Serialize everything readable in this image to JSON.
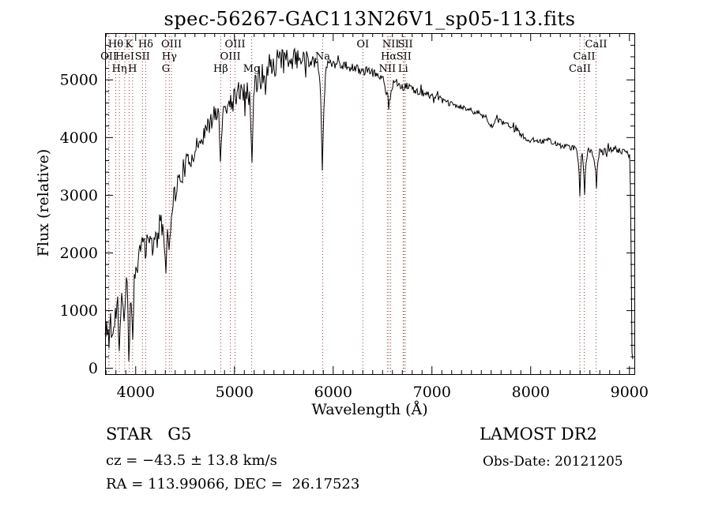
{
  "header": {
    "title": "spec-56267-GAC113N26V1_sp05-113.fits"
  },
  "footer": {
    "object_class": "STAR   G5",
    "survey": "LAMOST DR2",
    "cz": "cz = −43.5 ± 13.8 km/s",
    "obs_date": "Obs-Date: 20121205",
    "radec": "RA = 113.99066, DEC =  26.17523"
  },
  "chart_data": {
    "type": "line",
    "title": "spec-56267-GAC113N26V1_sp05-113.fits",
    "xlabel": "Wavelength (Å)",
    "ylabel": "Flux (relative)",
    "xlim": [
      3690,
      9050
    ],
    "ylim": [
      -100,
      5810
    ],
    "xticks": [
      4000,
      5000,
      6000,
      7000,
      8000,
      9000
    ],
    "yticks": [
      0,
      1000,
      2000,
      3000,
      4000,
      5000
    ],
    "x_minor_step": 100,
    "y_minor_step": 200,
    "grid": false,
    "legend": "none",
    "line_color": "#000000",
    "marker_line_color": "#a03a30",
    "seed": 11,
    "sample_step": 8,
    "spectral_lines": [
      {
        "label": "OII",
        "wavelength": 3727,
        "row": 2
      },
      {
        "label": "OII",
        "wavelength": 3729,
        "row": 3
      },
      {
        "label": "Hθ",
        "wavelength": 3798,
        "row": 1
      },
      {
        "label": "Hη",
        "wavelength": 3835,
        "row": 3
      },
      {
        "label": "HeI",
        "wavelength": 3889,
        "row": 2
      },
      {
        "label": "K",
        "wavelength": 3933,
        "row": 1
      },
      {
        "label": "H",
        "wavelength": 3968,
        "row": 3
      },
      {
        "label": "SII",
        "wavelength": 4068,
        "row": 2
      },
      {
        "label": "Hδ",
        "wavelength": 4101,
        "row": 1
      },
      {
        "label": "G",
        "wavelength": 4305,
        "row": 3
      },
      {
        "label": "Hγ",
        "wavelength": 4340,
        "row": 2
      },
      {
        "label": "OIII",
        "wavelength": 4363,
        "row": 1
      },
      {
        "label": "Hβ",
        "wavelength": 4861,
        "row": 3
      },
      {
        "label": "OIII",
        "wavelength": 4959,
        "row": 2
      },
      {
        "label": "OIII",
        "wavelength": 5007,
        "row": 1
      },
      {
        "label": "Mg",
        "wavelength": 5175,
        "row": 3
      },
      {
        "label": "Na",
        "wavelength": 5893,
        "row": 2
      },
      {
        "label": "OI",
        "wavelength": 6300,
        "row": 1
      },
      {
        "label": "NII",
        "wavelength": 6548,
        "row": 3
      },
      {
        "label": "Hα",
        "wavelength": 6563,
        "row": 2
      },
      {
        "label": "NII",
        "wavelength": 6583,
        "row": 1
      },
      {
        "label": "Li",
        "wavelength": 6708,
        "row": 3
      },
      {
        "label": "SII",
        "wavelength": 6716,
        "row": 2
      },
      {
        "label": "SII",
        "wavelength": 6731,
        "row": 1
      },
      {
        "label": "CaII",
        "wavelength": 8498,
        "row": 3
      },
      {
        "label": "CaII",
        "wavelength": 8542,
        "row": 2
      },
      {
        "label": "CaII",
        "wavelength": 8662,
        "row": 1
      }
    ],
    "continuum": [
      [
        3690,
        600
      ],
      [
        3700,
        450
      ],
      [
        3715,
        850
      ],
      [
        3727,
        500
      ],
      [
        3740,
        950
      ],
      [
        3755,
        700
      ],
      [
        3770,
        550
      ],
      [
        3785,
        750
      ],
      [
        3800,
        950
      ],
      [
        3815,
        1050
      ],
      [
        3825,
        800
      ],
      [
        3835,
        450
      ],
      [
        3850,
        1150
      ],
      [
        3870,
        1100
      ],
      [
        3889,
        850
      ],
      [
        3905,
        1500
      ],
      [
        3920,
        1550
      ],
      [
        3933,
        250
      ],
      [
        3950,
        1500
      ],
      [
        3968,
        600
      ],
      [
        3985,
        1450
      ],
      [
        4000,
        1700
      ],
      [
        4025,
        1950
      ],
      [
        4050,
        2200
      ],
      [
        4068,
        2050
      ],
      [
        4085,
        2300
      ],
      [
        4101,
        2050
      ],
      [
        4120,
        2350
      ],
      [
        4150,
        2200
      ],
      [
        4180,
        2100
      ],
      [
        4210,
        2250
      ],
      [
        4240,
        2450
      ],
      [
        4270,
        2500
      ],
      [
        4290,
        2300
      ],
      [
        4305,
        1800
      ],
      [
        4320,
        2500
      ],
      [
        4340,
        2150
      ],
      [
        4360,
        2750
      ],
      [
        4380,
        2950
      ],
      [
        4410,
        3100
      ],
      [
        4440,
        3250
      ],
      [
        4470,
        3400
      ],
      [
        4500,
        3500
      ],
      [
        4530,
        3550
      ],
      [
        4560,
        3650
      ],
      [
        4600,
        3800
      ],
      [
        4640,
        3900
      ],
      [
        4680,
        4050
      ],
      [
        4720,
        4150
      ],
      [
        4760,
        4250
      ],
      [
        4800,
        4400
      ],
      [
        4830,
        4500
      ],
      [
        4861,
        3900
      ],
      [
        4890,
        4500
      ],
      [
        4920,
        4550
      ],
      [
        4959,
        4600
      ],
      [
        5000,
        4700
      ],
      [
        5040,
        4800
      ],
      [
        5080,
        4800
      ],
      [
        5120,
        4850
      ],
      [
        5155,
        4700
      ],
      [
        5175,
        3900
      ],
      [
        5200,
        4850
      ],
      [
        5240,
        5000
      ],
      [
        5280,
        5100
      ],
      [
        5320,
        5150
      ],
      [
        5360,
        5250
      ],
      [
        5400,
        5300
      ],
      [
        5450,
        5300
      ],
      [
        5500,
        5350
      ],
      [
        5550,
        5300
      ],
      [
        5600,
        5350
      ],
      [
        5650,
        5400
      ],
      [
        5700,
        5400
      ],
      [
        5750,
        5350
      ],
      [
        5800,
        5350
      ],
      [
        5850,
        5300
      ],
      [
        5893,
        4200
      ],
      [
        5930,
        5250
      ],
      [
        5970,
        5300
      ],
      [
        6010,
        5300
      ],
      [
        6060,
        5280
      ],
      [
        6110,
        5250
      ],
      [
        6160,
        5220
      ],
      [
        6210,
        5200
      ],
      [
        6260,
        5180
      ],
      [
        6310,
        5150
      ],
      [
        6360,
        5150
      ],
      [
        6410,
        5120
      ],
      [
        6460,
        5080
      ],
      [
        6510,
        5020
      ],
      [
        6563,
        4600
      ],
      [
        6610,
        4980
      ],
      [
        6660,
        4950
      ],
      [
        6708,
        4870
      ],
      [
        6750,
        4900
      ],
      [
        6800,
        4850
      ],
      [
        6850,
        4800
      ],
      [
        6900,
        4780
      ],
      [
        6950,
        4750
      ],
      [
        7000,
        4720
      ],
      [
        7050,
        4700
      ],
      [
        7100,
        4650
      ],
      [
        7150,
        4600
      ],
      [
        7200,
        4580
      ],
      [
        7250,
        4550
      ],
      [
        7300,
        4520
      ],
      [
        7350,
        4500
      ],
      [
        7400,
        4470
      ],
      [
        7450,
        4430
      ],
      [
        7500,
        4400
      ],
      [
        7550,
        4350
      ],
      [
        7610,
        4200
      ],
      [
        7660,
        4300
      ],
      [
        7710,
        4250
      ],
      [
        7760,
        4220
      ],
      [
        7810,
        4180
      ],
      [
        7860,
        4150
      ],
      [
        7900,
        4050
      ],
      [
        7950,
        3980
      ],
      [
        8000,
        3950
      ],
      [
        8060,
        3960
      ],
      [
        8120,
        3940
      ],
      [
        8180,
        3960
      ],
      [
        8240,
        3900
      ],
      [
        8300,
        3860
      ],
      [
        8360,
        3840
      ],
      [
        8420,
        3820
      ],
      [
        8460,
        3810
      ],
      [
        8498,
        3400
      ],
      [
        8520,
        3790
      ],
      [
        8542,
        3380
      ],
      [
        8580,
        3780
      ],
      [
        8620,
        3770
      ],
      [
        8662,
        3420
      ],
      [
        8700,
        3740
      ],
      [
        8750,
        3760
      ],
      [
        8800,
        3780
      ],
      [
        8850,
        3800
      ],
      [
        8900,
        3780
      ],
      [
        8950,
        3740
      ],
      [
        8990,
        3700
      ],
      [
        9005,
        3650
      ],
      [
        9015,
        2500
      ],
      [
        9025,
        300
      ],
      [
        9035,
        100
      ]
    ],
    "noise_amplitude": [
      [
        3690,
        300
      ],
      [
        3900,
        270
      ],
      [
        4000,
        230
      ],
      [
        4300,
        210
      ],
      [
        4600,
        190
      ],
      [
        4900,
        170
      ],
      [
        5150,
        180
      ],
      [
        5300,
        250
      ],
      [
        5550,
        230
      ],
      [
        5700,
        150
      ],
      [
        5900,
        110
      ],
      [
        6100,
        90
      ],
      [
        6300,
        80
      ],
      [
        6500,
        70
      ],
      [
        6700,
        65
      ],
      [
        7000,
        55
      ],
      [
        7300,
        50
      ],
      [
        7600,
        55
      ],
      [
        7900,
        50
      ],
      [
        8200,
        45
      ],
      [
        8500,
        50
      ],
      [
        8800,
        55
      ],
      [
        9035,
        60
      ]
    ],
    "absorption_minima": [
      [
        3727,
        350
      ],
      [
        3835,
        300
      ],
      [
        3933,
        120
      ],
      [
        3968,
        500
      ],
      [
        4101,
        1900
      ],
      [
        4305,
        1650
      ],
      [
        4340,
        2050
      ],
      [
        4861,
        3580
      ],
      [
        5175,
        3570
      ],
      [
        5893,
        3430
      ],
      [
        6563,
        4480
      ],
      [
        8498,
        2980
      ],
      [
        8542,
        3010
      ],
      [
        8662,
        3120
      ]
    ]
  }
}
